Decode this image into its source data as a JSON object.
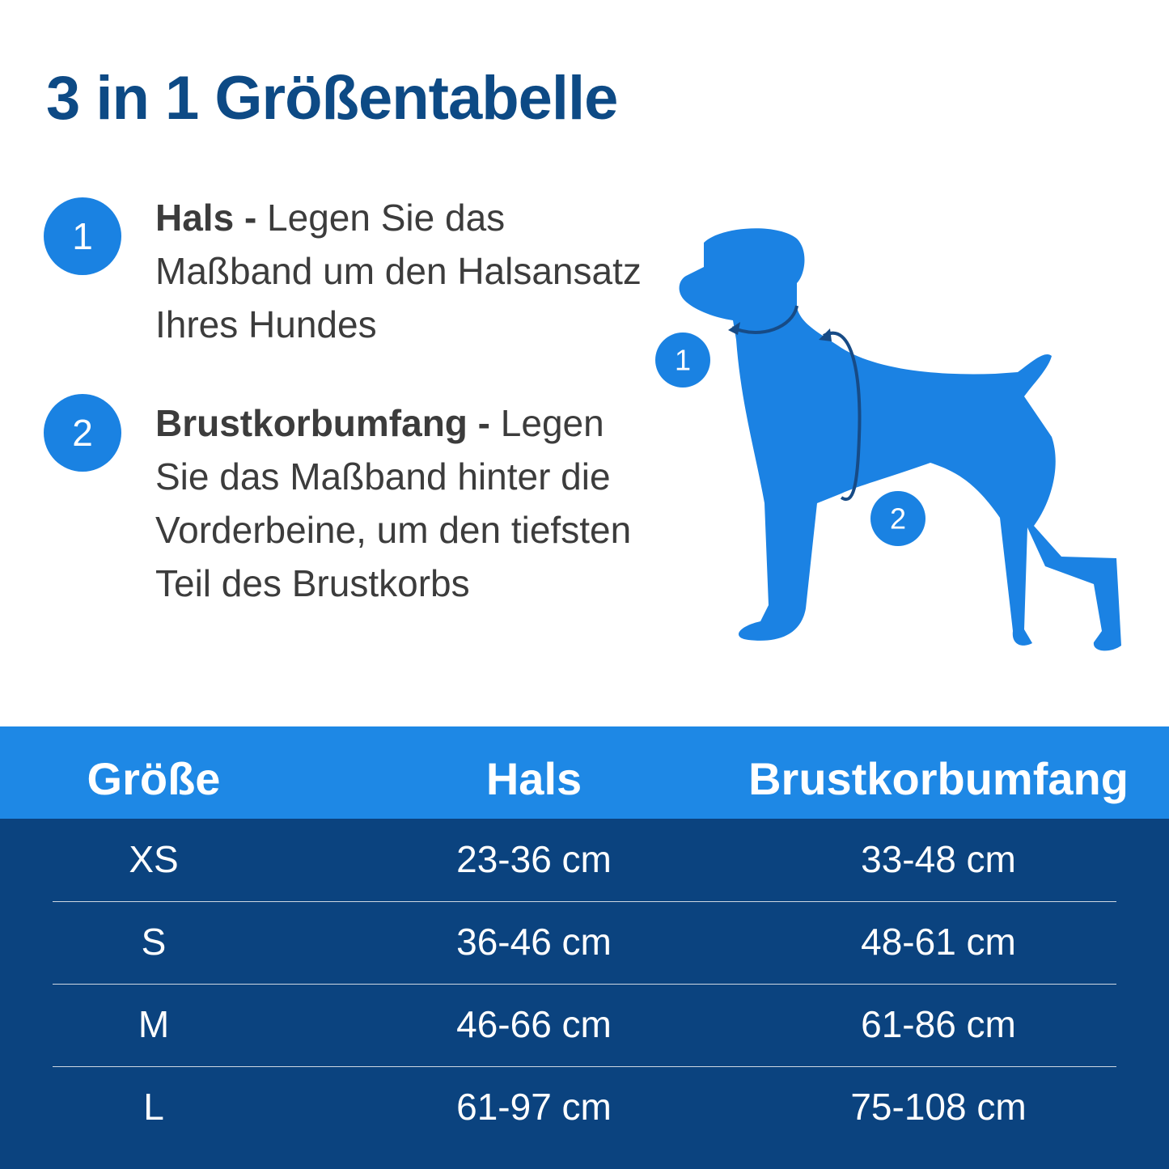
{
  "header": {
    "title": "3 in 1 Größentabelle"
  },
  "steps": [
    {
      "number": "1",
      "heading": "Hals -",
      "text": "Legen Sie das Maßband um den Halsansatz Ihres Hundes"
    },
    {
      "number": "2",
      "heading": "Brustkorbumfang -",
      "text": "Legen Sie das Maßband hinter die Vorderbeine, um den tiefsten Teil des Brustkorbs"
    }
  ],
  "figure": {
    "labels": [
      "1",
      "2"
    ]
  },
  "table": {
    "columns": [
      "Größe",
      "Hals",
      "Brustkorbumfang"
    ],
    "rows": [
      [
        "XS",
        "23-36 cm",
        "33-48 cm"
      ],
      [
        "S",
        "36-46 cm",
        "48-61 cm"
      ],
      [
        "M",
        "46-66 cm",
        "61-86 cm"
      ],
      [
        "L",
        "61-97 cm",
        "75-108 cm"
      ]
    ]
  }
}
